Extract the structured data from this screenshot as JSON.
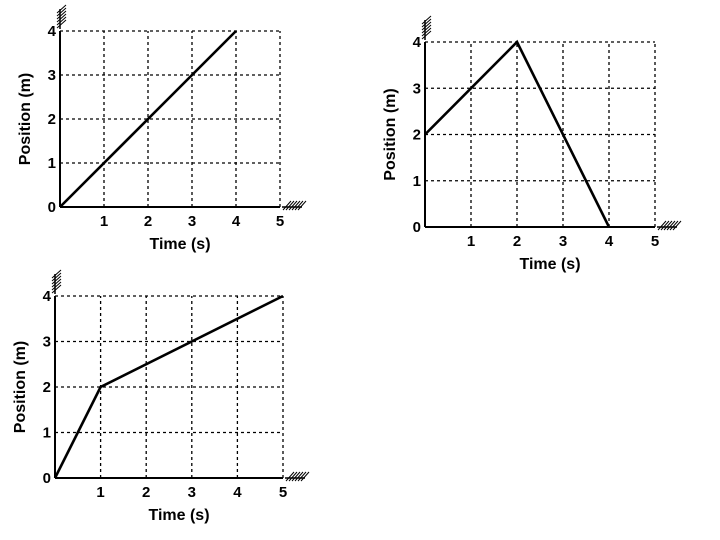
{
  "colors": {
    "line": "#000000",
    "grid": "#000000",
    "background": "#ffffff"
  },
  "chart_data": [
    {
      "type": "line",
      "xlabel": "Time (s)",
      "ylabel": "Position (m)",
      "xlim": [
        0,
        5
      ],
      "ylim": [
        0,
        4
      ],
      "x_ticks": [
        "0",
        "1",
        "2",
        "3",
        "4",
        "5"
      ],
      "y_ticks": [
        "0",
        "1",
        "2",
        "3",
        "4"
      ],
      "grid": true,
      "series": [
        {
          "x": [
            0,
            4
          ],
          "y": [
            0,
            4
          ]
        }
      ]
    },
    {
      "type": "line",
      "xlabel": "Time (s)",
      "ylabel": "Position (m)",
      "xlim": [
        0,
        5
      ],
      "ylim": [
        0,
        4
      ],
      "x_ticks": [
        "0",
        "1",
        "2",
        "3",
        "4",
        "5"
      ],
      "y_ticks": [
        "0",
        "1",
        "2",
        "3",
        "4"
      ],
      "grid": true,
      "series": [
        {
          "x": [
            0,
            2,
            4
          ],
          "y": [
            2,
            4,
            0
          ]
        }
      ]
    },
    {
      "type": "line",
      "xlabel": "Time (s)",
      "ylabel": "Position (m)",
      "xlim": [
        0,
        5
      ],
      "ylim": [
        0,
        4
      ],
      "x_ticks": [
        "0",
        "1",
        "2",
        "3",
        "4",
        "5"
      ],
      "y_ticks": [
        "0",
        "1",
        "2",
        "3",
        "4"
      ],
      "grid": true,
      "series": [
        {
          "x": [
            0,
            1,
            5
          ],
          "y": [
            0,
            2,
            4
          ]
        }
      ]
    }
  ]
}
